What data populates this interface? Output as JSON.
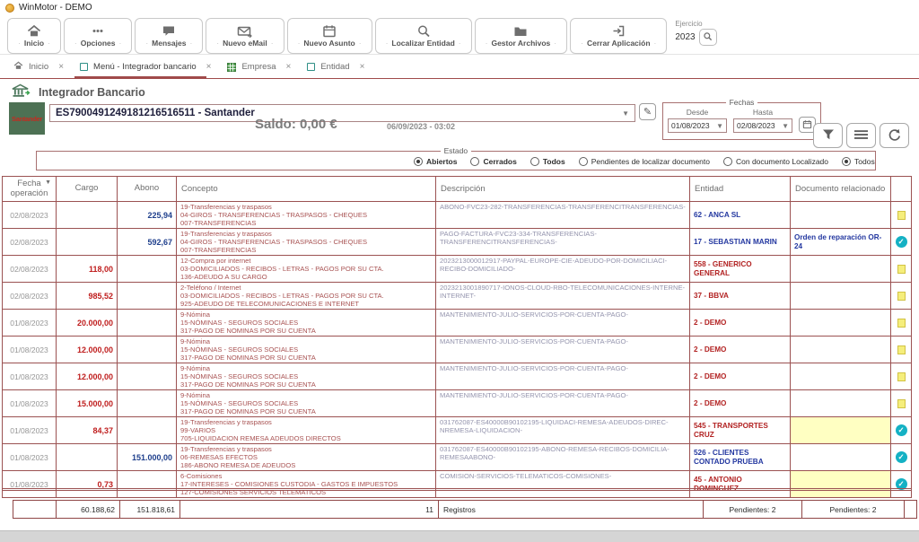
{
  "window": {
    "title": "WinMotor - DEMO"
  },
  "toolbar": {
    "buttons": [
      {
        "label": "Inicio",
        "icon": "home-icon"
      },
      {
        "label": "Opciones",
        "icon": "dots-icon"
      },
      {
        "label": "Mensajes",
        "icon": "message-icon"
      },
      {
        "label": "Nuevo eMail",
        "icon": "email-icon"
      },
      {
        "label": "Nuevo Asunto",
        "icon": "calendar-icon"
      },
      {
        "label": "Localizar Entidad",
        "icon": "search-icon"
      },
      {
        "label": "Gestor Archivos",
        "icon": "folder-icon"
      },
      {
        "label": "Cerrar Aplicación",
        "icon": "exit-icon"
      }
    ],
    "ejercicio_label": "Ejercicio",
    "ejercicio_value": "2023"
  },
  "tabs": {
    "items": [
      {
        "label": "Inicio",
        "icon": "home-icon",
        "active": false
      },
      {
        "label": "Menú - Integrador bancario",
        "icon": "window-icon",
        "active": true
      },
      {
        "label": "Empresa",
        "icon": "table-icon",
        "active": false
      },
      {
        "label": "Entidad",
        "icon": "window-icon",
        "active": false
      }
    ],
    "close_glyph": "×"
  },
  "page": {
    "title": "Integrador Bancario"
  },
  "account": {
    "logo_text": "Santander",
    "value": "ES7900491249181216516511 - Santander",
    "saldo": "Saldo: 0,00 €",
    "timestamp": "06/09/2023 - 03:02"
  },
  "fechas": {
    "legend": "Fechas",
    "desde_label": "Desde",
    "hasta_label": "Hasta",
    "desde_value": "01/08/2023",
    "hasta_value": "02/08/2023"
  },
  "estado": {
    "legend": "Estado",
    "options": [
      {
        "label": "Abiertos",
        "checked": true,
        "bold": true
      },
      {
        "label": "Cerrados",
        "checked": false,
        "bold": true
      },
      {
        "label": "Todos",
        "checked": false,
        "bold": true
      },
      {
        "label": "Pendientes de localizar documento",
        "checked": false,
        "bold": false
      },
      {
        "label": "Con documento Localizado",
        "checked": false,
        "bold": false
      },
      {
        "label": "Todos",
        "checked": true,
        "bold": false
      }
    ]
  },
  "table": {
    "headers": {
      "fecha": "Fecha operación",
      "cargo": "Cargo",
      "abono": "Abono",
      "concepto": "Concepto",
      "descripcion": "Descripción",
      "entidad": "Entidad",
      "documento": "Documento relacionado"
    },
    "rows": [
      {
        "fecha": "02/08/2023",
        "cargo": "",
        "abono": "225,94",
        "concepto": [
          "19-Transferencias y traspasos",
          "04-GIROS - TRANSFERENCIAS - TRASPASOS - CHEQUES",
          "007-TRANSFERENCIAS"
        ],
        "descripcion": "ABONO-FVC23-282-TRANSFERENCIAS-TRANSFERENCITRANSFERENCIAS-",
        "entidad": "62 - ANCA SL",
        "entidad_color": "blue",
        "documento": "",
        "documento_highlight": false,
        "icon": "note"
      },
      {
        "fecha": "02/08/2023",
        "cargo": "",
        "abono": "592,67",
        "concepto": [
          "19-Transferencias y traspasos",
          "04-GIROS - TRANSFERENCIAS - TRASPASOS - CHEQUES",
          "007-TRANSFERENCIAS"
        ],
        "descripcion": "PAGO-FACTURA-FVC23-334-TRANSFERENCIAS-TRANSFERENCITRANSFERENCIAS-",
        "entidad": "17 - SEBASTIAN MARIN",
        "entidad_color": "blue",
        "documento": "Orden de reparación OR-24",
        "documento_highlight": false,
        "icon": "check"
      },
      {
        "fecha": "02/08/2023",
        "cargo": "118,00",
        "abono": "",
        "concepto": [
          "12-Compra por internet",
          "03-DOMICILIADOS - RECIBOS - LETRAS - PAGOS POR SU CTA.",
          "136-ADEUDO A SU CARGO"
        ],
        "descripcion": "2023213000012917-PAYPAL-EUROPE-CIE-ADEUDO-POR-DOMICILIACI-RECIBO-DOMICILIADO-",
        "entidad": "558 - GENERICO GENERAL",
        "entidad_color": "red",
        "documento": "",
        "documento_highlight": false,
        "icon": "note"
      },
      {
        "fecha": "02/08/2023",
        "cargo": "985,52",
        "abono": "",
        "concepto": [
          "2-Teléfono / Internet",
          "03-DOMICILIADOS - RECIBOS - LETRAS - PAGOS POR SU CTA.",
          "925-ADEUDO DE TELECOMUNICACIONES E INTERNET"
        ],
        "descripcion": "2023213001890717-IONOS-CLOUD-RBO-TELECOMUNICACIONES-INTERNE-INTERNET-",
        "entidad": "37 - BBVA",
        "entidad_color": "red",
        "documento": "",
        "documento_highlight": false,
        "icon": "note"
      },
      {
        "fecha": "01/08/2023",
        "cargo": "20.000,00",
        "abono": "",
        "concepto": [
          "9-Nómina",
          "15-NÓMINAS - SEGUROS SOCIALES",
          "317-PAGO DE NOMINAS POR SU CUENTA"
        ],
        "descripcion": "MANTENIMIENTO-JULIO-SERVICIOS-POR-CUENTA-PAGO-",
        "entidad": "2 - DEMO",
        "entidad_color": "red",
        "documento": "",
        "documento_highlight": false,
        "icon": "note"
      },
      {
        "fecha": "01/08/2023",
        "cargo": "12.000,00",
        "abono": "",
        "concepto": [
          "9-Nómina",
          "15-NÓMINAS - SEGUROS SOCIALES",
          "317-PAGO DE NOMINAS POR SU CUENTA"
        ],
        "descripcion": "MANTENIMIENTO-JULIO-SERVICIOS-POR-CUENTA-PAGO-",
        "entidad": "2 - DEMO",
        "entidad_color": "red",
        "documento": "",
        "documento_highlight": false,
        "icon": "note"
      },
      {
        "fecha": "01/08/2023",
        "cargo": "12.000,00",
        "abono": "",
        "concepto": [
          "9-Nómina",
          "15-NÓMINAS - SEGUROS SOCIALES",
          "317-PAGO DE NOMINAS POR SU CUENTA"
        ],
        "descripcion": "MANTENIMIENTO-JULIO-SERVICIOS-POR-CUENTA-PAGO-",
        "entidad": "2 - DEMO",
        "entidad_color": "red",
        "documento": "",
        "documento_highlight": false,
        "icon": "note"
      },
      {
        "fecha": "01/08/2023",
        "cargo": "15.000,00",
        "abono": "",
        "concepto": [
          "9-Nómina",
          "15-NÓMINAS - SEGUROS SOCIALES",
          "317-PAGO DE NOMINAS POR SU CUENTA"
        ],
        "descripcion": "MANTENIMIENTO-JULIO-SERVICIOS-POR-CUENTA-PAGO-",
        "entidad": "2 - DEMO",
        "entidad_color": "red",
        "documento": "",
        "documento_highlight": false,
        "icon": "note"
      },
      {
        "fecha": "01/08/2023",
        "cargo": "84,37",
        "abono": "",
        "concepto": [
          "19-Transferencias y traspasos",
          "99-VARIOS",
          "705-LIQUIDACION REMESA ADEUDOS DIRECTOS"
        ],
        "descripcion": "031762087-ES40000B90102195-LIQUIDACI-REMESA-ADEUDOS-DIREC-NREMESA-LIQUIDACION-",
        "entidad": "545 - TRANSPORTES CRUZ",
        "entidad_color": "red",
        "documento": "",
        "documento_highlight": true,
        "icon": "check"
      },
      {
        "fecha": "01/08/2023",
        "cargo": "",
        "abono": "151.000,00",
        "concepto": [
          "19-Transferencias y traspasos",
          "06-REMESAS EFECTOS",
          "186-ABONO REMESA DE ADEUDOS"
        ],
        "descripcion": "031762087-ES40000B90102195-ABONO-REMESA-RECIBOS-DOMICILIA-REMESAABONO-",
        "entidad": "526 - CLIENTES CONTADO PRUEBA",
        "entidad_color": "blue",
        "documento": "",
        "documento_highlight": false,
        "icon": "check"
      },
      {
        "fecha": "01/08/2023",
        "cargo": "0,73",
        "abono": "",
        "concepto": [
          "6-Comisiones",
          "17-INTERESES - COMISIONES  CUSTODIA - GASTOS E IMPUESTOS",
          "127-COMISIONES SERVICIOS TELEMATICOS"
        ],
        "descripcion": "COMISION-SERVICIOS-TELEMATICOS-COMISIONES-",
        "entidad": "45 - ANTONIO DOMINGUEZ",
        "entidad_color": "red",
        "documento": "",
        "documento_highlight": true,
        "icon": "check"
      }
    ]
  },
  "footer": {
    "cargo_total": "60.188,62",
    "abono_total": "151.818,61",
    "count": "11",
    "registros_label": "Registros",
    "pendientes_entidad": "Pendientes: 2",
    "pendientes_documento": "Pendientes: 2"
  },
  "colors": {
    "accent_maroon": "#9b5252",
    "entity_blue": "#2438a0",
    "entity_red": "#b22222",
    "cargo_red": "#bf1d1d",
    "abono_blue": "#20408d",
    "highlight_yellow": "#ffffc2",
    "check_teal": "#14b1c4",
    "note_yellow": "#f5ee7c",
    "logo_green": "#4d7154",
    "logo_red": "#c52b20"
  }
}
